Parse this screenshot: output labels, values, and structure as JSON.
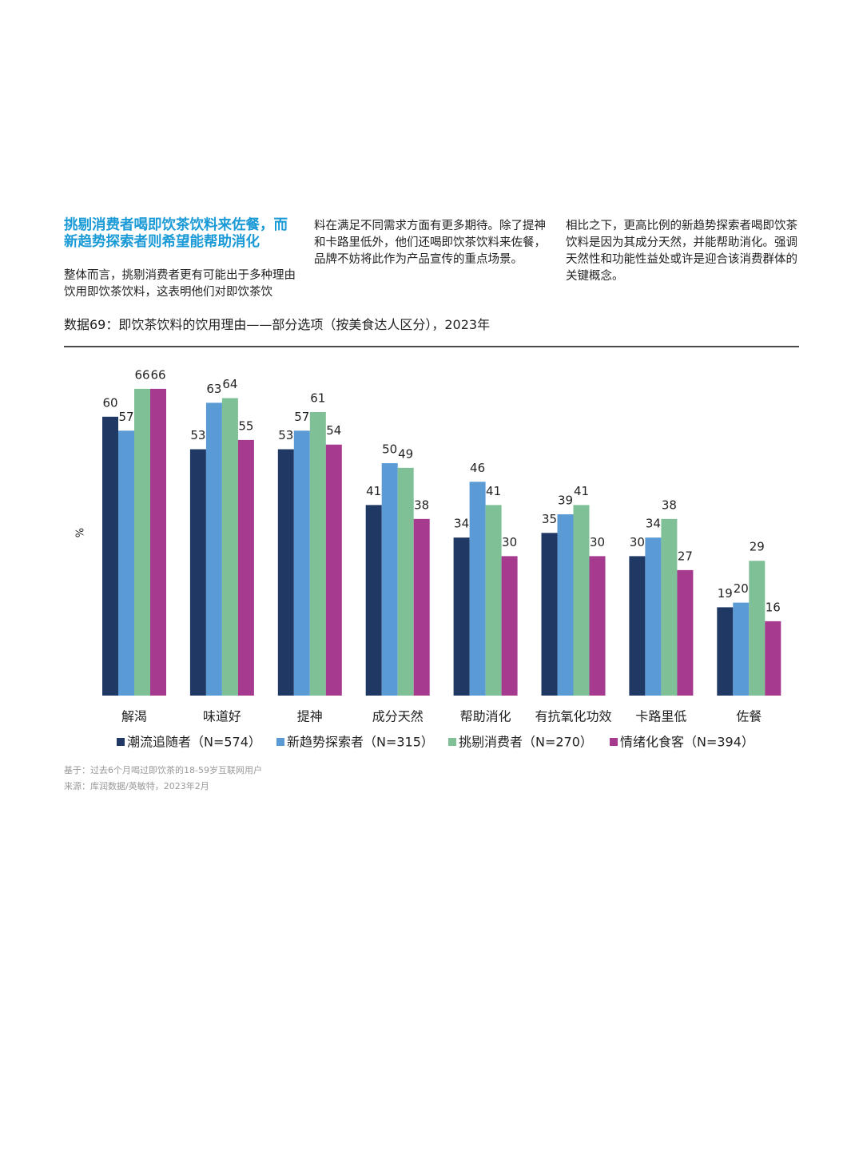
{
  "heading": "挑剔消费者喝即饮茶饮料来佐餐，而新趋势探索者则希望能帮助消化",
  "columns": [
    "整体而言，挑剔消费者更有可能出于多种理由饮用即饮茶饮料，这表明他们对即饮茶饮",
    "料在满足不同需求方面有更多期待。除了提神和卡路里低外，他们还喝即饮茶饮料来佐餐，品牌不妨将此作为产品宣传的重点场景。",
    "相比之下，更高比例的新趋势探索者喝即饮茶饮料是因为其成分天然，并能帮助消化。强调天然性和功能性益处或许是迎合该消费群体的关键概念。"
  ],
  "chart_data": {
    "type": "bar",
    "title": "数据69：即饮茶饮料的饮用理由——部分选项（按美食达人区分），2023年",
    "y_label": "%",
    "categories": [
      "解渴",
      "味道好",
      "提神",
      "成分天然",
      "帮助消化",
      "有抗氧化功效",
      "卡路里低",
      "佐餐"
    ],
    "series": [
      {
        "name": "潮流追随者（N=574）",
        "color": "#1f3864",
        "values": [
          60,
          53,
          53,
          41,
          34,
          35,
          30,
          19
        ]
      },
      {
        "name": "新趋势探索者（N=315）",
        "color": "#5b9bd5",
        "values": [
          57,
          63,
          57,
          50,
          46,
          39,
          34,
          20
        ]
      },
      {
        "name": "挑剔消费者（N=270）",
        "color": "#7fc097",
        "values": [
          66,
          64,
          61,
          49,
          41,
          41,
          38,
          29
        ]
      },
      {
        "name": "情绪化食客（N=394）",
        "color": "#a63a8f",
        "values": [
          66,
          55,
          54,
          38,
          30,
          30,
          27,
          16
        ]
      }
    ]
  },
  "notes": [
    "基于：过去6个月喝过即饮茶的18-59岁互联网用户",
    "来源：库润数据/英敏特，2023年2月"
  ]
}
